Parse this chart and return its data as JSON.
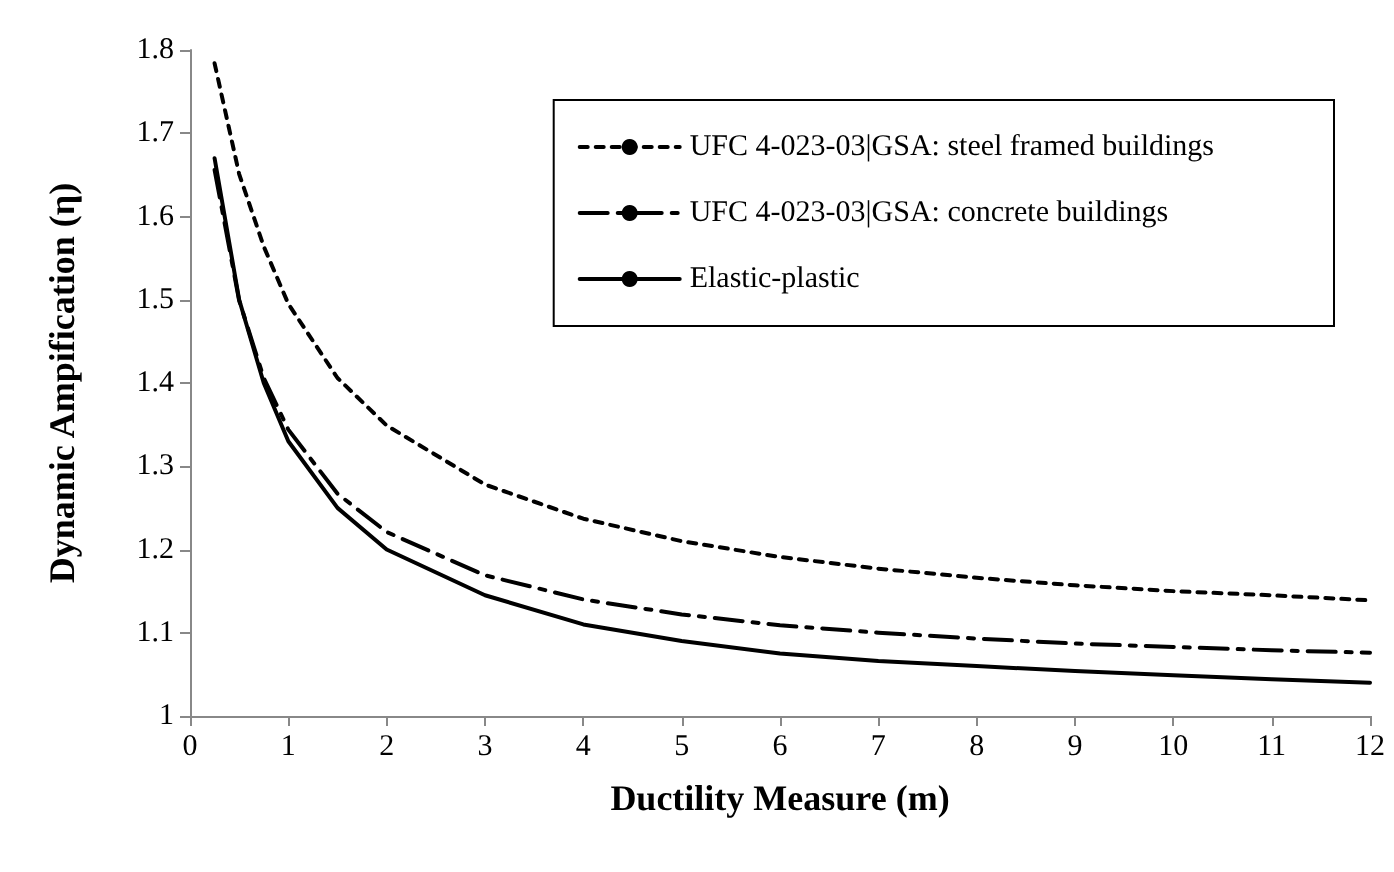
{
  "chart_data": {
    "type": "line",
    "xlabel": "Ductility Measure (m)",
    "ylabel": "Dynamic Ampification (η)",
    "x": [
      0.25,
      0.5,
      0.75,
      1,
      1.5,
      2,
      3,
      4,
      5,
      6,
      7,
      8,
      9,
      10,
      11,
      12
    ],
    "series": [
      {
        "name": "UFC 4-023-03|GSA: steel framed buildings",
        "color": "#000000",
        "line_style": "dotted",
        "values": [
          1.784,
          1.651,
          1.564,
          1.495,
          1.406,
          1.349,
          1.278,
          1.237,
          1.21,
          1.191,
          1.177,
          1.166,
          1.157,
          1.15,
          1.145,
          1.139
        ]
      },
      {
        "name": "UFC 4-023-03|GSA: concrete buildings",
        "color": "#000000",
        "line_style": "dashed",
        "values": [
          1.656,
          1.499,
          1.406,
          1.344,
          1.267,
          1.221,
          1.169,
          1.14,
          1.122,
          1.109,
          1.1,
          1.093,
          1.087,
          1.083,
          1.079,
          1.076
        ]
      },
      {
        "name": "Elastic-plastic",
        "color": "#000000",
        "line_style": "solid",
        "values": [
          1.67,
          1.5,
          1.4,
          1.33,
          1.25,
          1.2,
          1.145,
          1.11,
          1.09,
          1.075,
          1.066,
          1.06,
          1.054,
          1.049,
          1.044,
          1.04
        ]
      }
    ],
    "xlim": [
      0,
      12
    ],
    "xticks": [
      0,
      1,
      2,
      3,
      4,
      5,
      6,
      7,
      8,
      9,
      10,
      11,
      12
    ],
    "ylim": [
      1,
      1.8
    ],
    "yticks": [
      1,
      1.1,
      1.2,
      1.3,
      1.4,
      1.5,
      1.6,
      1.7,
      1.8
    ],
    "grid": false,
    "legend": "top right",
    "marker": "none"
  }
}
